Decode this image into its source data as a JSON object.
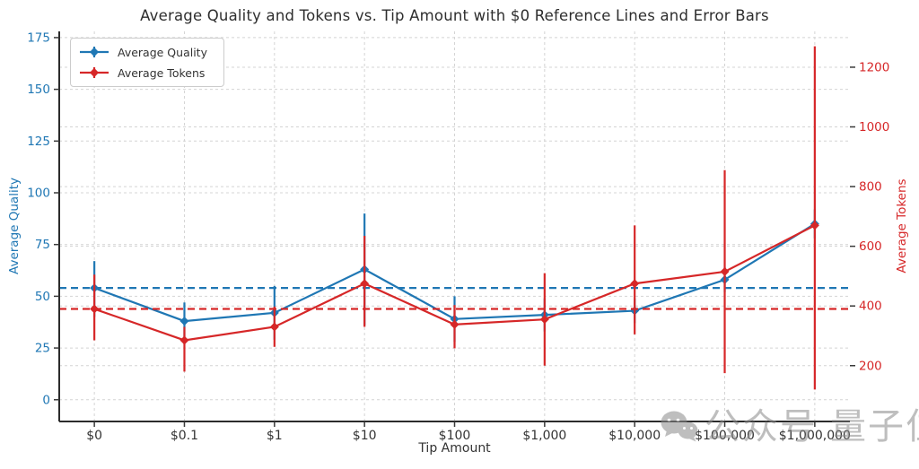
{
  "title": "Average Quality and Tokens vs. Tip Amount with $0 Reference Lines and Error Bars",
  "watermark": {
    "icon": "wechat-icon",
    "prefix": "公众号",
    "brand": "量子位"
  },
  "chart_data": {
    "type": "line",
    "title": "Average Quality and Tokens vs. Tip Amount with $0 Reference Lines and Error Bars",
    "xlabel": "Tip Amount",
    "categories": [
      "$0",
      "$0.1",
      "$1",
      "$10",
      "$100",
      "$1,000",
      "$10,000",
      "$100,000",
      "$1,000,000"
    ],
    "xlim": [
      -0.39,
      8.39
    ],
    "grid": true,
    "legend": {
      "position": "upper-left",
      "entries": [
        "Average Quality",
        "Average Tokens"
      ]
    },
    "left_axis": {
      "label": "Average Quality",
      "color": "#1f77b4",
      "ticks": [
        0,
        25,
        50,
        75,
        100,
        125,
        150,
        175
      ],
      "ylim": [
        -10.5,
        178
      ]
    },
    "right_axis": {
      "label": "Average Tokens",
      "color": "#d62728",
      "ticks": [
        200,
        400,
        600,
        800,
        1000,
        1200
      ],
      "ylim": [
        13,
        1320
      ]
    },
    "series": [
      {
        "name": "Average Quality",
        "axis": "left",
        "color": "#1f77b4",
        "marker": "diamond",
        "values": [
          54,
          38,
          42,
          63,
          39,
          41,
          43,
          58,
          85
        ],
        "err_low": [
          40,
          28,
          29,
          36,
          28,
          33,
          37,
          52,
          78
        ],
        "err_high": [
          67,
          47,
          55,
          90,
          50,
          49,
          49,
          64,
          92
        ],
        "ref_line": 54
      },
      {
        "name": "Average Tokens",
        "axis": "right",
        "color": "#d62728",
        "marker": "diamond",
        "values": [
          390,
          285,
          330,
          475,
          338,
          355,
          475,
          515,
          670
        ],
        "err_low": [
          285,
          180,
          263,
          330,
          258,
          200,
          305,
          175,
          120
        ],
        "err_high": [
          505,
          330,
          398,
          635,
          403,
          510,
          670,
          855,
          1270
        ],
        "ref_line": 390
      }
    ]
  }
}
